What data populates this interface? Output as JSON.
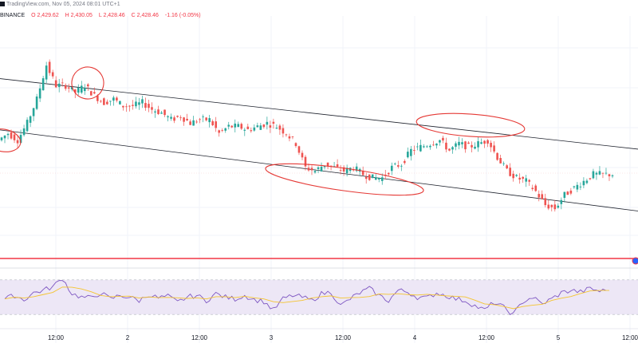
{
  "header": {
    "line1": "TradingView.com, Nov 05, 2024 08:01 UTC+1",
    "exchange": "BINANCE",
    "open": "O 2,429.62",
    "high": "H 2,430.05",
    "low": "L 2,428.46",
    "close": "C 2,428.46",
    "change": "-1.16 (-0.05%)"
  },
  "colors": {
    "up": "#26a69a",
    "down": "#ef5350",
    "channel": "#1e222d",
    "ellipse": "#e53935",
    "hline": "#f23645",
    "rsi": "#7e57c2",
    "rsi_ma": "#f4c430",
    "rsi_band": "#ede7f6"
  },
  "chart_data": {
    "type": "candlestick",
    "x_ticks": [
      "12:00",
      "2",
      "12:00",
      "3",
      "12:00",
      "4",
      "12:00",
      "5",
      "12:00"
    ],
    "price_path": [
      36,
      38,
      36,
      41,
      48,
      58,
      52,
      52,
      50,
      52,
      49,
      47,
      48,
      46,
      46,
      47,
      45,
      44,
      42,
      43,
      41,
      42,
      42,
      38,
      40,
      40,
      39,
      40,
      41,
      40,
      38,
      35,
      28,
      27,
      29,
      28,
      27,
      28,
      26,
      25,
      25,
      28,
      29,
      33,
      34,
      35,
      36,
      33,
      35,
      34,
      35,
      36,
      31,
      27,
      25,
      24,
      21,
      17,
      16,
      20,
      22,
      24,
      26,
      26
    ],
    "horizontal_level": 14,
    "channel": {
      "upper": [
        [
          0,
          54
        ],
        [
          64,
          34
        ]
      ],
      "lower": [
        [
          0,
          39
        ],
        [
          64,
          16
        ]
      ]
    },
    "highlight_ellipses": [
      {
        "center": [
          1.5,
          39
        ]
      },
      {
        "center": [
          8,
          52
        ]
      },
      {
        "center": [
          34,
          24
        ]
      },
      {
        "center": [
          47,
          37
        ]
      }
    ],
    "rsi": {
      "values": [
        48,
        52,
        47,
        55,
        58,
        62,
        72,
        54,
        50,
        49,
        55,
        48,
        52,
        50,
        46,
        53,
        49,
        51,
        44,
        50,
        52,
        46,
        54,
        50,
        48,
        52,
        47,
        45,
        35,
        48,
        52,
        50,
        46,
        54,
        56,
        40,
        48,
        55,
        60,
        52,
        46,
        58,
        56,
        50,
        49,
        55,
        52,
        48,
        46,
        40,
        35,
        44,
        38,
        30,
        45,
        50,
        42,
        48,
        55,
        58,
        56,
        60,
        57,
        58
      ],
      "levels": [
        70,
        30
      ],
      "range": [
        20,
        80
      ]
    }
  }
}
